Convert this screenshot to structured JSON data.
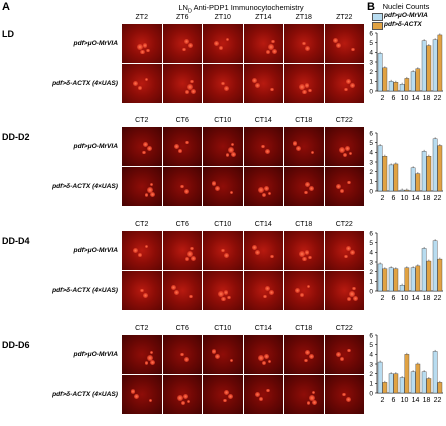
{
  "figure": {
    "panel_a_letter": "A",
    "panel_b_letter": "B",
    "title_prefix": "LN",
    "title_subscript": "D",
    "title_suffix": " Anti-PDP1 Immunocytochemistry",
    "chart_title": "Nuclei Counts",
    "row_labels": [
      "pdf>μO-MrVIA",
      "pdf>δ-ACTX (4×UAS)"
    ],
    "colors": {
      "series1": "#b8dcf0",
      "series2": "#e0a243",
      "tissue": "#8d0d07",
      "nuclei": "#e8452c"
    }
  },
  "blocks": [
    {
      "condition": "LD",
      "timepoints": [
        "ZT2",
        "ZT6",
        "ZT10",
        "ZT14",
        "ZT18",
        "ZT22"
      ]
    },
    {
      "condition": "DD-D2",
      "timepoints": [
        "CT2",
        "CT6",
        "CT10",
        "CT14",
        "CT18",
        "CT22"
      ]
    },
    {
      "condition": "DD-D4",
      "timepoints": [
        "CT2",
        "CT6",
        "CT10",
        "CT14",
        "CT18",
        "CT22"
      ]
    },
    {
      "condition": "DD-D6",
      "timepoints": [
        "CT2",
        "CT6",
        "CT10",
        "CT14",
        "CT18",
        "CT22"
      ]
    }
  ],
  "chart_data": [
    {
      "type": "bar",
      "name": "LD",
      "categories": [
        "2",
        "6",
        "10",
        "14",
        "18",
        "22"
      ],
      "series": [
        {
          "name": "pdf>μO-MrVIA",
          "values": [
            3.9,
            1.0,
            0.7,
            2.0,
            5.2,
            5.3
          ]
        },
        {
          "name": "pdf>δ-ACTX",
          "values": [
            2.4,
            0.9,
            1.3,
            2.3,
            4.7,
            5.8
          ]
        }
      ],
      "ylim": [
        0,
        6
      ],
      "yticks": [
        0,
        1,
        2,
        3,
        4,
        5,
        6
      ],
      "legend": [
        "pdf>μO-MrVIA",
        "pdf>δ-ACTX"
      ],
      "legend_position": "top"
    },
    {
      "type": "bar",
      "name": "DD-D2",
      "categories": [
        "2",
        "6",
        "10",
        "14",
        "18",
        "22"
      ],
      "series": [
        {
          "name": "pdf>μO-MrVIA",
          "values": [
            4.7,
            2.7,
            0.1,
            2.4,
            4.1,
            5.4
          ]
        },
        {
          "name": "pdf>δ-ACTX",
          "values": [
            3.6,
            2.8,
            0.1,
            1.8,
            3.6,
            4.7
          ]
        }
      ],
      "ylim": [
        0,
        6
      ],
      "yticks": [
        0,
        1,
        2,
        3,
        4,
        5,
        6
      ]
    },
    {
      "type": "bar",
      "name": "DD-D4",
      "categories": [
        "2",
        "6",
        "10",
        "14",
        "18",
        "22"
      ],
      "series": [
        {
          "name": "pdf>μO-MrVIA",
          "values": [
            2.8,
            2.4,
            0.6,
            2.4,
            4.4,
            5.2
          ]
        },
        {
          "name": "pdf>δ-ACTX",
          "values": [
            2.3,
            2.3,
            2.4,
            2.6,
            3.1,
            3.3
          ]
        }
      ],
      "ylim": [
        0,
        6
      ],
      "yticks": [
        0,
        1,
        2,
        3,
        4,
        5,
        6
      ]
    },
    {
      "type": "bar",
      "name": "DD-D6",
      "categories": [
        "2",
        "6",
        "10",
        "14",
        "18",
        "22"
      ],
      "series": [
        {
          "name": "pdf>μO-MrVIA",
          "values": [
            3.2,
            2.0,
            1.6,
            2.2,
            2.2,
            4.3
          ]
        },
        {
          "name": "pdf>δ-ACTX",
          "values": [
            1.1,
            2.0,
            4.0,
            3.0,
            1.5,
            1.1
          ]
        }
      ],
      "ylim": [
        0,
        6
      ],
      "yticks": [
        0,
        1,
        2,
        3,
        4,
        5,
        6
      ]
    }
  ]
}
